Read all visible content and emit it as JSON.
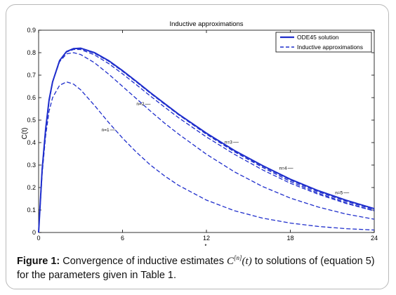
{
  "chart_data": {
    "type": "line",
    "title": "Inductive approximations",
    "xlabel": "t",
    "ylabel": "C(t)",
    "xlim": [
      0,
      24
    ],
    "ylim": [
      0,
      0.9
    ],
    "xticks": [
      0,
      6,
      12,
      18,
      24
    ],
    "yticks": [
      0,
      0.1,
      0.2,
      0.3,
      0.4,
      0.5,
      0.6,
      0.7,
      0.8,
      0.9
    ],
    "grid": false,
    "legend_position": "top-right",
    "legend": [
      "ODE45 solution",
      "Inductive approximations"
    ],
    "series": [
      {
        "name": "ODE45 solution",
        "style": "solid",
        "x": [
          0,
          0.25,
          0.5,
          0.75,
          1,
          1.5,
          2,
          2.5,
          3,
          4,
          5,
          6,
          7,
          8,
          9,
          10,
          12,
          14,
          16,
          18,
          20,
          22,
          24
        ],
        "y": [
          0,
          0.28,
          0.46,
          0.59,
          0.67,
          0.765,
          0.805,
          0.818,
          0.82,
          0.8,
          0.765,
          0.72,
          0.672,
          0.622,
          0.574,
          0.527,
          0.442,
          0.365,
          0.298,
          0.237,
          0.186,
          0.143,
          0.106
        ]
      },
      {
        "name": "n=1",
        "style": "dashed",
        "x": [
          0,
          0.25,
          0.5,
          0.75,
          1,
          1.5,
          2,
          2.5,
          3,
          4,
          5,
          6,
          7,
          8,
          9,
          10,
          12,
          14,
          16,
          18,
          20,
          22,
          24
        ],
        "y": [
          0,
          0.26,
          0.43,
          0.54,
          0.6,
          0.655,
          0.67,
          0.66,
          0.635,
          0.565,
          0.49,
          0.42,
          0.357,
          0.3,
          0.252,
          0.21,
          0.144,
          0.097,
          0.064,
          0.042,
          0.027,
          0.017,
          0.011
        ]
      },
      {
        "name": "n=2",
        "style": "dashed",
        "x": [
          0,
          0.25,
          0.5,
          0.75,
          1,
          1.5,
          2,
          2.5,
          3,
          4,
          5,
          6,
          7,
          8,
          9,
          10,
          12,
          14,
          16,
          18,
          20,
          22,
          24
        ],
        "y": [
          0,
          0.28,
          0.46,
          0.58,
          0.67,
          0.76,
          0.795,
          0.8,
          0.792,
          0.755,
          0.705,
          0.65,
          0.595,
          0.54,
          0.487,
          0.438,
          0.348,
          0.27,
          0.205,
          0.153,
          0.113,
          0.082,
          0.059
        ]
      },
      {
        "name": "n=3",
        "style": "dashed",
        "x": [
          0,
          0.25,
          0.5,
          0.75,
          1,
          1.5,
          2,
          2.5,
          3,
          4,
          5,
          6,
          7,
          8,
          9,
          10,
          12,
          14,
          16,
          18,
          20,
          22,
          24
        ],
        "y": [
          0,
          0.28,
          0.46,
          0.59,
          0.67,
          0.765,
          0.803,
          0.814,
          0.814,
          0.79,
          0.752,
          0.706,
          0.657,
          0.607,
          0.558,
          0.511,
          0.425,
          0.348,
          0.279,
          0.219,
          0.17,
          0.129,
          0.096
        ]
      },
      {
        "name": "n=4",
        "style": "dashed",
        "x": [
          0,
          0.25,
          0.5,
          0.75,
          1,
          1.5,
          2,
          2.5,
          3,
          4,
          5,
          6,
          7,
          8,
          9,
          10,
          12,
          14,
          16,
          18,
          20,
          22,
          24
        ],
        "y": [
          0,
          0.28,
          0.46,
          0.59,
          0.67,
          0.765,
          0.805,
          0.817,
          0.818,
          0.797,
          0.762,
          0.717,
          0.669,
          0.619,
          0.571,
          0.524,
          0.437,
          0.359,
          0.29,
          0.227,
          0.175,
          0.132,
          0.096
        ]
      },
      {
        "name": "n=5",
        "style": "dashed",
        "x": [
          0,
          0.25,
          0.5,
          0.75,
          1,
          1.5,
          2,
          2.5,
          3,
          4,
          5,
          6,
          7,
          8,
          9,
          10,
          12,
          14,
          16,
          18,
          20,
          22,
          24
        ],
        "y": [
          0,
          0.28,
          0.46,
          0.59,
          0.67,
          0.765,
          0.805,
          0.818,
          0.82,
          0.799,
          0.764,
          0.719,
          0.671,
          0.621,
          0.573,
          0.526,
          0.44,
          0.363,
          0.295,
          0.233,
          0.181,
          0.138,
          0.101
        ]
      }
    ],
    "annotations": [
      {
        "text": "n=1",
        "x": 4.5,
        "y": 0.45
      },
      {
        "text": "n=2",
        "x": 7.0,
        "y": 0.565
      },
      {
        "text": "n=3",
        "x": 13.3,
        "y": 0.395
      },
      {
        "text": "n=4",
        "x": 17.2,
        "y": 0.28
      },
      {
        "text": "n=5",
        "x": 21.2,
        "y": 0.17
      }
    ],
    "colors": {
      "line": "#1f2ecc",
      "axis": "#000000"
    }
  },
  "caption": {
    "label": "Figure 1:",
    "text_before": "Convergence of inductive estimates",
    "math_symbol": "C",
    "math_superscript": "[n]",
    "math_arg": "(t)",
    "text_after": "to solutions of (equation 5) for the parameters given in Table 1."
  }
}
